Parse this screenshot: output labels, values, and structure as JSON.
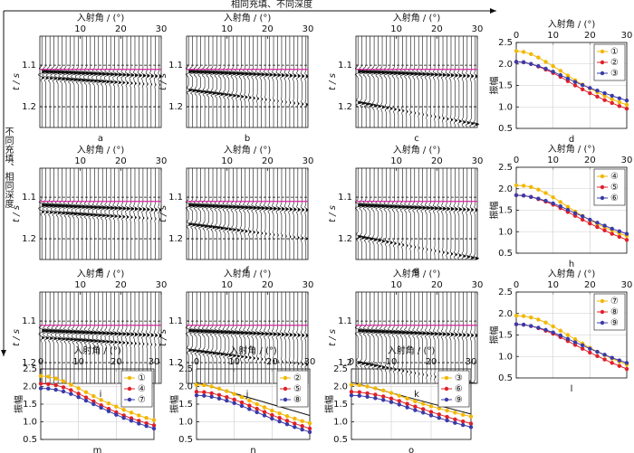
{
  "annotations": {
    "top": "相同充填、不同深度",
    "left": "不同充填、相同深度"
  },
  "chart_data": [
    {
      "type": "seismic",
      "label": "a",
      "xlabel": "入射角 / (°)",
      "ylabel": "t / s",
      "xlim": [
        0,
        30
      ],
      "xticks": [
        10,
        20,
        30
      ],
      "ylim": [
        1.03,
        1.25
      ],
      "yticks": [
        1.1,
        1.2
      ],
      "reference_t": 1.11
    },
    {
      "type": "seismic",
      "label": "b",
      "xlabel": "入射角 / (°)",
      "ylabel": "t / s",
      "xlim": [
        0,
        30
      ],
      "xticks": [
        10,
        20,
        30
      ],
      "ylim": [
        1.03,
        1.25
      ],
      "yticks": [
        1.1,
        1.2
      ],
      "reference_t": 1.11
    },
    {
      "type": "seismic",
      "label": "c",
      "xlabel": "入射角 / (°)",
      "ylabel": "t / s",
      "xlim": [
        0,
        30
      ],
      "xticks": [
        10,
        20,
        30
      ],
      "ylim": [
        1.03,
        1.25
      ],
      "yticks": [
        1.1,
        1.2
      ],
      "reference_t": 1.11
    },
    {
      "type": "line",
      "label": "d",
      "xlabel": "入射角 / (°)",
      "ylabel": "振幅",
      "xlim": [
        0,
        30
      ],
      "xticks": [
        0,
        10,
        20,
        30
      ],
      "ylim": [
        0.5,
        2.5
      ],
      "yticks": [
        0.5,
        {
          "value": 1,
          "label": "1.0"
        },
        1.5,
        {
          "value": 2,
          "label": "2.0"
        },
        2.5
      ],
      "grid": true,
      "legend": "upper right",
      "x": [
        0,
        2,
        4,
        6,
        8,
        10,
        12,
        14,
        16,
        18,
        20,
        22,
        24,
        26,
        28,
        30
      ],
      "series": [
        {
          "name": "①",
          "color": "#f2b705",
          "values": [
            2.3,
            2.28,
            2.23,
            2.15,
            2.05,
            1.95,
            1.84,
            1.73,
            1.62,
            1.52,
            1.43,
            1.34,
            1.26,
            1.18,
            1.11,
            1.05
          ]
        },
        {
          "name": "②",
          "color": "#e0202a",
          "values": [
            2.05,
            2.04,
            2.0,
            1.94,
            1.87,
            1.79,
            1.7,
            1.6,
            1.5,
            1.41,
            1.32,
            1.24,
            1.16,
            1.09,
            1.02,
            0.96
          ]
        },
        {
          "name": "③",
          "color": "#3a3aa8",
          "values": [
            2.05,
            2.04,
            2.0,
            1.95,
            1.89,
            1.82,
            1.74,
            1.66,
            1.58,
            1.51,
            1.44,
            1.38,
            1.32,
            1.26,
            1.2,
            1.15
          ]
        }
      ]
    },
    {
      "type": "seismic",
      "label": "e",
      "xlabel": "入射角 / (°)",
      "ylabel": "t / s",
      "xlim": [
        0,
        30
      ],
      "xticks": [
        10,
        20,
        30
      ],
      "ylim": [
        1.03,
        1.25
      ],
      "yticks": [
        1.1,
        1.2
      ],
      "reference_t": 1.11
    },
    {
      "type": "seismic",
      "label": "f",
      "xlabel": "入射角 / (°)",
      "ylabel": "t / s",
      "xlim": [
        0,
        30
      ],
      "xticks": [
        10,
        20,
        30
      ],
      "ylim": [
        1.03,
        1.25
      ],
      "yticks": [
        1.1,
        1.2
      ],
      "reference_t": 1.11
    },
    {
      "type": "seismic",
      "label": "g",
      "xlabel": "入射角 / (°)",
      "ylabel": "t / s",
      "xlim": [
        0,
        30
      ],
      "xticks": [
        10,
        20,
        30
      ],
      "ylim": [
        1.03,
        1.25
      ],
      "yticks": [
        1.1,
        1.2
      ],
      "reference_t": 1.11
    },
    {
      "type": "line",
      "label": "h",
      "xlabel": "入射角 / (°)",
      "ylabel": "振幅",
      "xlim": [
        0,
        30
      ],
      "xticks": [
        0,
        10,
        20,
        30
      ],
      "ylim": [
        0.5,
        2.5
      ],
      "yticks": [
        0.5,
        {
          "value": 1,
          "label": "1.0"
        },
        1.5,
        {
          "value": 2,
          "label": "2.0"
        },
        2.5
      ],
      "grid": true,
      "legend": "upper right",
      "x": [
        0,
        2,
        4,
        6,
        8,
        10,
        12,
        14,
        16,
        18,
        20,
        22,
        24,
        26,
        28,
        30
      ],
      "series": [
        {
          "name": "④",
          "color": "#f2b705",
          "values": [
            2.08,
            2.07,
            2.04,
            1.98,
            1.9,
            1.8,
            1.69,
            1.58,
            1.47,
            1.37,
            1.27,
            1.18,
            1.1,
            1.03,
            0.96,
            0.9
          ]
        },
        {
          "name": "⑤",
          "color": "#e0202a",
          "values": [
            1.85,
            1.84,
            1.81,
            1.76,
            1.7,
            1.63,
            1.55,
            1.46,
            1.37,
            1.28,
            1.19,
            1.11,
            1.03,
            0.95,
            0.88,
            0.81
          ]
        },
        {
          "name": "⑥",
          "color": "#3a3aa8",
          "values": [
            1.85,
            1.84,
            1.81,
            1.77,
            1.72,
            1.66,
            1.59,
            1.51,
            1.43,
            1.36,
            1.28,
            1.21,
            1.14,
            1.07,
            1.01,
            0.95
          ]
        }
      ]
    },
    {
      "type": "seismic",
      "label": "i",
      "xlabel": "入射角 / (°)",
      "ylabel": "t / s",
      "xlim": [
        0,
        30
      ],
      "xticks": [
        10,
        20,
        30
      ],
      "ylim": [
        1.03,
        1.25
      ],
      "yticks": [
        1.1,
        1.2
      ],
      "reference_t": 1.11
    },
    {
      "type": "seismic",
      "label": "j",
      "xlabel": "入射角 / (°)",
      "ylabel": "t / s",
      "xlim": [
        0,
        30
      ],
      "xticks": [
        10,
        20,
        30
      ],
      "ylim": [
        1.03,
        1.25
      ],
      "yticks": [
        1.1,
        1.2
      ],
      "reference_t": 1.11
    },
    {
      "type": "seismic",
      "label": "k",
      "xlabel": "入射角 / (°)",
      "ylabel": "t / s",
      "xlim": [
        0,
        30
      ],
      "xticks": [
        10,
        20,
        30
      ],
      "ylim": [
        1.03,
        1.25
      ],
      "yticks": [
        1.1,
        1.2
      ],
      "reference_t": 1.11
    },
    {
      "type": "line",
      "label": "l",
      "xlabel": "入射角 / (°)",
      "ylabel": "振幅",
      "xlim": [
        0,
        30
      ],
      "xticks": [
        0,
        10,
        20,
        30
      ],
      "ylim": [
        0.5,
        2.5
      ],
      "yticks": [
        0.5,
        {
          "value": 1,
          "label": "1.0"
        },
        1.5,
        {
          "value": 2,
          "label": "2.0"
        },
        2.5
      ],
      "grid": true,
      "legend": "upper right",
      "x": [
        0,
        2,
        4,
        6,
        8,
        10,
        12,
        14,
        16,
        18,
        20,
        22,
        24,
        26,
        28,
        30
      ],
      "series": [
        {
          "name": "⑦",
          "color": "#f2b705",
          "values": [
            1.95,
            1.94,
            1.91,
            1.86,
            1.79,
            1.7,
            1.6,
            1.5,
            1.4,
            1.3,
            1.2,
            1.11,
            1.03,
            0.95,
            0.88,
            0.81
          ]
        },
        {
          "name": "⑧",
          "color": "#e0202a",
          "values": [
            1.75,
            1.74,
            1.71,
            1.66,
            1.6,
            1.53,
            1.45,
            1.36,
            1.27,
            1.18,
            1.09,
            1.01,
            0.93,
            0.85,
            0.78,
            0.71
          ]
        },
        {
          "name": "⑨",
          "color": "#3a3aa8",
          "values": [
            1.75,
            1.74,
            1.71,
            1.67,
            1.62,
            1.56,
            1.49,
            1.41,
            1.33,
            1.26,
            1.18,
            1.11,
            1.04,
            0.97,
            0.91,
            0.85
          ]
        }
      ]
    },
    {
      "type": "line",
      "label": "m",
      "xlabel": "入射角 / (°)",
      "ylabel": "振幅",
      "xlim": [
        0,
        30
      ],
      "xticks": [
        0,
        10,
        20,
        30
      ],
      "ylim": [
        0.5,
        2.5
      ],
      "yticks": [
        0.5,
        {
          "value": 1,
          "label": "1.0"
        },
        1.5,
        {
          "value": 2,
          "label": "2.0"
        },
        2.5
      ],
      "grid": true,
      "legend": "upper right",
      "x": [
        0,
        2,
        4,
        6,
        8,
        10,
        12,
        14,
        16,
        18,
        20,
        22,
        24,
        26,
        28,
        30
      ],
      "series": [
        {
          "name": "①",
          "color": "#f2b705",
          "values": [
            2.3,
            2.28,
            2.23,
            2.15,
            2.05,
            1.95,
            1.84,
            1.73,
            1.62,
            1.52,
            1.43,
            1.34,
            1.26,
            1.18,
            1.11,
            1.05
          ]
        },
        {
          "name": "④",
          "color": "#e0202a",
          "values": [
            2.08,
            2.07,
            2.04,
            1.98,
            1.9,
            1.8,
            1.69,
            1.58,
            1.47,
            1.37,
            1.27,
            1.18,
            1.1,
            1.03,
            0.96,
            0.9
          ]
        },
        {
          "name": "⑦",
          "color": "#3a3aa8",
          "values": [
            1.95,
            1.94,
            1.91,
            1.86,
            1.79,
            1.7,
            1.6,
            1.5,
            1.4,
            1.3,
            1.2,
            1.11,
            1.03,
            0.95,
            0.88,
            0.81
          ]
        }
      ]
    },
    {
      "type": "line",
      "label": "n",
      "xlabel": "入射角 / (°)",
      "ylabel": "振幅",
      "xlim": [
        0,
        30
      ],
      "xticks": [
        0,
        10,
        20,
        30
      ],
      "ylim": [
        0.5,
        2.5
      ],
      "yticks": [
        0.5,
        {
          "value": 1,
          "label": "1.0"
        },
        1.5,
        {
          "value": 2,
          "label": "2.0"
        },
        2.5
      ],
      "grid": true,
      "legend": "upper right",
      "x": [
        0,
        2,
        4,
        6,
        8,
        10,
        12,
        14,
        16,
        18,
        20,
        22,
        24,
        26,
        28,
        30
      ],
      "trend_line": {
        "x": [
          0,
          30
        ],
        "y": [
          2.12,
          1.18
        ]
      },
      "series": [
        {
          "name": "②",
          "color": "#f2b705",
          "values": [
            2.05,
            2.04,
            2.0,
            1.94,
            1.87,
            1.79,
            1.7,
            1.6,
            1.5,
            1.41,
            1.32,
            1.24,
            1.16,
            1.09,
            1.02,
            0.96
          ]
        },
        {
          "name": "⑤",
          "color": "#e0202a",
          "values": [
            1.85,
            1.84,
            1.81,
            1.76,
            1.7,
            1.63,
            1.55,
            1.46,
            1.37,
            1.28,
            1.19,
            1.11,
            1.03,
            0.95,
            0.88,
            0.81
          ]
        },
        {
          "name": "⑧",
          "color": "#3a3aa8",
          "values": [
            1.75,
            1.74,
            1.71,
            1.66,
            1.6,
            1.53,
            1.45,
            1.36,
            1.27,
            1.18,
            1.09,
            1.01,
            0.93,
            0.85,
            0.78,
            0.71
          ]
        }
      ]
    },
    {
      "type": "line",
      "label": "o",
      "xlabel": "入射角 / (°)",
      "ylabel": "振幅",
      "xlim": [
        0,
        30
      ],
      "xticks": [
        0,
        10,
        20,
        30
      ],
      "ylim": [
        0.5,
        2.5
      ],
      "yticks": [
        0.5,
        {
          "value": 1,
          "label": "1.0"
        },
        1.5,
        {
          "value": 2,
          "label": "2.0"
        },
        2.5
      ],
      "grid": true,
      "legend": "upper right",
      "x": [
        0,
        2,
        4,
        6,
        8,
        10,
        12,
        14,
        16,
        18,
        20,
        22,
        24,
        26,
        28,
        30
      ],
      "trend_line": {
        "x": [
          0,
          30
        ],
        "y": [
          2.12,
          1.22
        ]
      },
      "series": [
        {
          "name": "③",
          "color": "#f2b705",
          "values": [
            2.05,
            2.04,
            2.0,
            1.95,
            1.89,
            1.82,
            1.74,
            1.66,
            1.58,
            1.51,
            1.44,
            1.38,
            1.32,
            1.26,
            1.2,
            1.15
          ]
        },
        {
          "name": "⑥",
          "color": "#e0202a",
          "values": [
            1.85,
            1.84,
            1.81,
            1.77,
            1.72,
            1.66,
            1.59,
            1.51,
            1.43,
            1.36,
            1.28,
            1.21,
            1.14,
            1.07,
            1.01,
            0.95
          ]
        },
        {
          "name": "⑨",
          "color": "#3a3aa8",
          "values": [
            1.75,
            1.74,
            1.71,
            1.67,
            1.62,
            1.56,
            1.49,
            1.41,
            1.33,
            1.26,
            1.18,
            1.11,
            1.04,
            0.97,
            0.91,
            0.85
          ]
        }
      ]
    }
  ]
}
